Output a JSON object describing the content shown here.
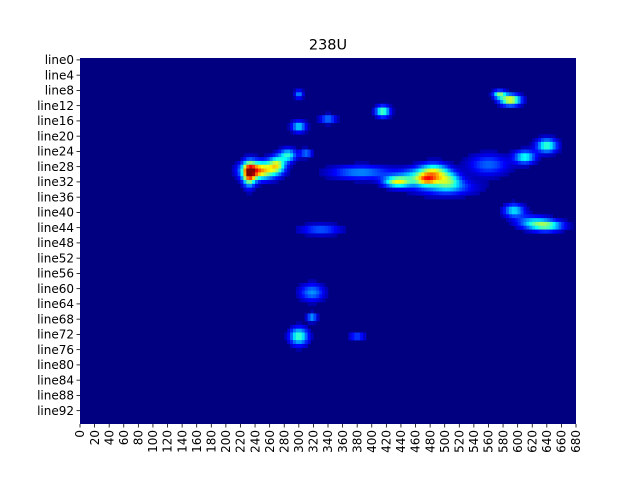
{
  "chart_data": {
    "type": "heatmap",
    "title": "238U",
    "xlabel": "",
    "ylabel": "",
    "colormap": "jet",
    "x_range": [
      0,
      680
    ],
    "x_ticks": [
      0,
      20,
      40,
      60,
      80,
      100,
      120,
      140,
      160,
      180,
      200,
      220,
      240,
      260,
      280,
      300,
      320,
      340,
      360,
      380,
      400,
      420,
      440,
      460,
      480,
      500,
      520,
      540,
      560,
      580,
      600,
      620,
      640,
      660,
      680
    ],
    "rows": 96,
    "y_ticks": [
      "line0",
      "line4",
      "line8",
      "line12",
      "line16",
      "line20",
      "line24",
      "line28",
      "line32",
      "line36",
      "line40",
      "line44",
      "line48",
      "line52",
      "line56",
      "line60",
      "line64",
      "line68",
      "line72",
      "line76",
      "line80",
      "line84",
      "line88",
      "line92"
    ],
    "background_value": 0.0,
    "hotspots": [
      {
        "x": 245,
        "row": 29.5,
        "value": 0.85,
        "width": 16,
        "height": 1.6
      },
      {
        "x": 232,
        "row": 30.5,
        "value": 0.7,
        "width": 6,
        "height": 2.2
      },
      {
        "x": 270,
        "row": 28.0,
        "value": 0.55,
        "width": 8,
        "height": 1.5
      },
      {
        "x": 285,
        "row": 25.5,
        "value": 0.45,
        "width": 8,
        "height": 1.2
      },
      {
        "x": 300,
        "row": 18.0,
        "value": 0.4,
        "width": 7,
        "height": 1.0
      },
      {
        "x": 310,
        "row": 25.0,
        "value": 0.3,
        "width": 6,
        "height": 0.8
      },
      {
        "x": 300,
        "row": 73.0,
        "value": 0.5,
        "width": 9,
        "height": 1.6
      },
      {
        "x": 318,
        "row": 61.5,
        "value": 0.3,
        "width": 12,
        "height": 1.6
      },
      {
        "x": 318,
        "row": 68.0,
        "value": 0.35,
        "width": 5,
        "height": 0.8
      },
      {
        "x": 300,
        "row": 9.5,
        "value": 0.3,
        "width": 4,
        "height": 0.8
      },
      {
        "x": 415,
        "row": 14.0,
        "value": 0.55,
        "width": 7,
        "height": 1.0
      },
      {
        "x": 340,
        "row": 16.0,
        "value": 0.3,
        "width": 8,
        "height": 0.8
      },
      {
        "x": 385,
        "row": 30.0,
        "value": 0.3,
        "width": 30,
        "height": 1.3
      },
      {
        "x": 435,
        "row": 32.5,
        "value": 0.6,
        "width": 13,
        "height": 1.0
      },
      {
        "x": 485,
        "row": 30.0,
        "value": 0.6,
        "width": 14,
        "height": 1.6
      },
      {
        "x": 475,
        "row": 32.0,
        "value": 0.45,
        "width": 10,
        "height": 1.0
      },
      {
        "x": 505,
        "row": 32.0,
        "value": 0.4,
        "width": 12,
        "height": 1.5
      },
      {
        "x": 460,
        "row": 31.0,
        "value": 0.3,
        "width": 18,
        "height": 1.5
      },
      {
        "x": 590,
        "row": 11.0,
        "value": 0.72,
        "width": 10,
        "height": 1.0
      },
      {
        "x": 575,
        "row": 9.5,
        "value": 0.5,
        "width": 6,
        "height": 0.7
      },
      {
        "x": 640,
        "row": 23.0,
        "value": 0.5,
        "width": 10,
        "height": 1.3
      },
      {
        "x": 610,
        "row": 26.0,
        "value": 0.45,
        "width": 10,
        "height": 1.2
      },
      {
        "x": 640,
        "row": 44.0,
        "value": 0.5,
        "width": 16,
        "height": 1.0
      },
      {
        "x": 595,
        "row": 40.0,
        "value": 0.4,
        "width": 10,
        "height": 1.2
      },
      {
        "x": 620,
        "row": 43.0,
        "value": 0.3,
        "width": 16,
        "height": 1.2
      },
      {
        "x": 500,
        "row": 34.0,
        "value": 0.28,
        "width": 30,
        "height": 1.5
      },
      {
        "x": 330,
        "row": 45.0,
        "value": 0.25,
        "width": 20,
        "height": 1.0
      },
      {
        "x": 380,
        "row": 73.0,
        "value": 0.25,
        "width": 8,
        "height": 0.7
      },
      {
        "x": 560,
        "row": 28.0,
        "value": 0.25,
        "width": 20,
        "height": 2.0
      }
    ]
  }
}
